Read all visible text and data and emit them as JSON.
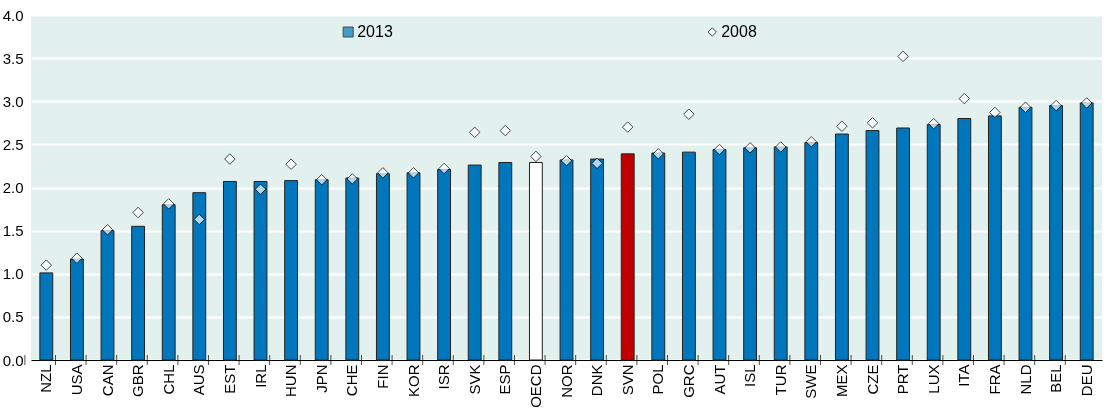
{
  "chart_data": {
    "type": "bar",
    "categories": [
      "NZL",
      "USA",
      "CAN",
      "GBR",
      "CHL",
      "AUS",
      "EST",
      "IRL",
      "HUN",
      "JPN",
      "CHE",
      "FIN",
      "KOR",
      "ISR",
      "SVK",
      "ESP",
      "OECD",
      "NOR",
      "DNK",
      "SVN",
      "POL",
      "GRC",
      "AUT",
      "ISL",
      "TUR",
      "SWE",
      "MEX",
      "CZE",
      "PRT",
      "LUX",
      "ITA",
      "FRA",
      "NLD",
      "BEL",
      "DEU"
    ],
    "series": [
      {
        "name": "2013",
        "color": "#0077bd",
        "colors": [
          "#0077bd",
          "#0077bd",
          "#0077bd",
          "#0077bd",
          "#0077bd",
          "#0077bd",
          "#0077bd",
          "#0077bd",
          "#0077bd",
          "#0077bd",
          "#0077bd",
          "#0077bd",
          "#0077bd",
          "#0077bd",
          "#0077bd",
          "#0077bd",
          "#ffffff",
          "#0077bd",
          "#0077bd",
          "#c00000",
          "#0077bd",
          "#0077bd",
          "#0077bd",
          "#0077bd",
          "#0077bd",
          "#0077bd",
          "#0077bd",
          "#0077bd",
          "#0077bd",
          "#0077bd",
          "#0077bd",
          "#0077bd",
          "#0077bd",
          "#0077bd",
          "#0077bd"
        ],
        "values": [
          1.01,
          1.17,
          1.5,
          1.55,
          1.8,
          1.94,
          2.07,
          2.07,
          2.08,
          2.09,
          2.11,
          2.16,
          2.17,
          2.21,
          2.26,
          2.29,
          2.29,
          2.32,
          2.33,
          2.39,
          2.4,
          2.41,
          2.44,
          2.46,
          2.47,
          2.52,
          2.62,
          2.66,
          2.69,
          2.73,
          2.8,
          2.83,
          2.93,
          2.95,
          2.98
        ]
      },
      {
        "name": "2008",
        "type": "scatter",
        "marker": "diamond",
        "color": "#ffffff",
        "values": [
          1.1,
          1.18,
          1.51,
          1.71,
          1.81,
          1.63,
          2.33,
          1.98,
          2.27,
          2.09,
          2.1,
          2.17,
          2.17,
          2.22,
          2.64,
          2.66,
          2.36,
          2.31,
          2.28,
          2.7,
          2.39,
          2.85,
          2.44,
          2.46,
          2.47,
          2.53,
          2.71,
          2.75,
          3.52,
          2.74,
          3.03,
          2.87,
          2.93,
          2.95,
          2.98
        ]
      }
    ],
    "ylim": [
      0,
      4
    ],
    "yticks": [
      {
        "value": 0,
        "label": "0.0"
      },
      0.5,
      {
        "value": 1,
        "label": "1.0"
      },
      1.5,
      {
        "value": 2,
        "label": "2.0"
      },
      2.5,
      {
        "value": 3,
        "label": "3.0"
      },
      3.5,
      {
        "value": 4,
        "label": "4.0"
      }
    ],
    "grid": "y",
    "legend": "top"
  }
}
